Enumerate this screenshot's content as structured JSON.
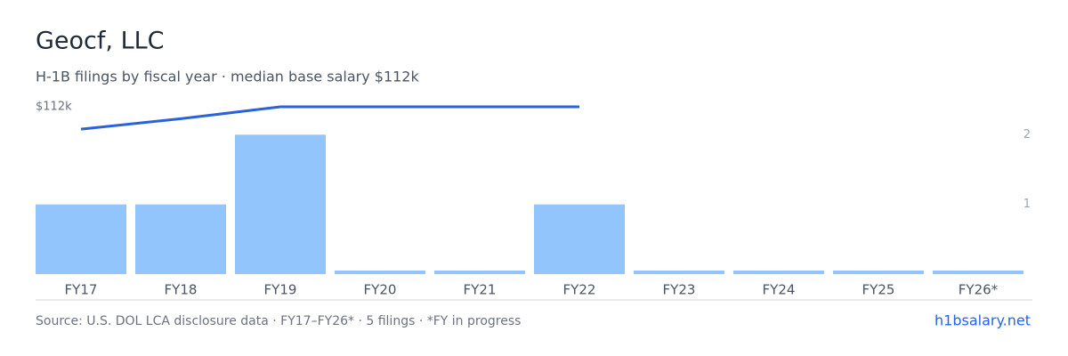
{
  "chart_data": {
    "type": "bar-line",
    "title": "Geocf, LLC",
    "subtitle": "H-1B filings by fiscal year · median base salary $112k",
    "categories": [
      "FY17",
      "FY18",
      "FY19",
      "FY20",
      "FY21",
      "FY22",
      "FY23",
      "FY24",
      "FY25",
      "FY26*"
    ],
    "series": [
      {
        "name": "H-1B filings",
        "color": "#93c5fd",
        "axis": "y2",
        "values": [
          1,
          1,
          2,
          0,
          0,
          1,
          0,
          0,
          0,
          0
        ]
      },
      {
        "name": "Median base salary",
        "color": "#2a62d9",
        "values": [
          97,
          104,
          112,
          112,
          112,
          112,
          null,
          null,
          null,
          null
        ]
      }
    ],
    "ylim": [
      0,
      112
    ],
    "yticks": [
      {
        "value": 112,
        "label": "$112k"
      }
    ],
    "y2lim": [
      0,
      2.4
    ],
    "y2ticks": [
      1,
      2
    ],
    "footer": "Source: U.S. DOL LCA disclosure data · FY17–FY26* · 5 filings · *FY in progress",
    "link": "h1bsalary.net"
  }
}
